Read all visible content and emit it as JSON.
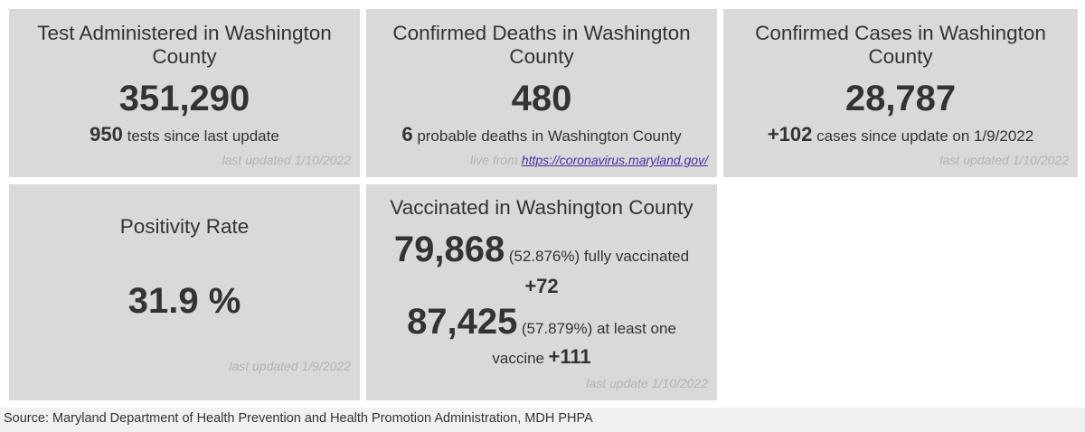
{
  "tests": {
    "title": "Test Administered in Washington County",
    "value": "351,290",
    "delta": "950",
    "delta_text": "tests since last update",
    "updated": "last updated 1/10/2022"
  },
  "deaths": {
    "title": "Confirmed Deaths in Washington County",
    "value": "480",
    "delta": "6",
    "delta_text": "probable deaths in Washington County",
    "source_prefix": "live from",
    "source_link": "https://coronavirus.maryland.gov/"
  },
  "cases": {
    "title": "Confirmed Cases in Washington County",
    "value": "28,787",
    "delta": "+102",
    "delta_text": "cases since update on 1/9/2022",
    "updated": "last updated 1/10/2022"
  },
  "positivity": {
    "title": "Positivity Rate",
    "value": "31.9 %",
    "updated": "last updated 1/9/2022"
  },
  "vaccinated": {
    "title": "Vaccinated in Washington County",
    "fully_value": "79,868",
    "fully_text": "(52.876%) fully vaccinated",
    "fully_delta": "+72",
    "one_value": "87,425",
    "one_text": "(57.879%) at least one",
    "one_text_2": "vaccine",
    "one_delta": "+111",
    "updated": "last update 1/10/2022"
  },
  "footer": {
    "source": "Source: Maryland Department of Health Prevention and Health Promotion Administration, MDH PHPA"
  },
  "colors": {
    "card_bg": "#d9d9d9",
    "text": "#333333",
    "muted": "#b4b4b4",
    "link": "#4b2ca3",
    "footer_bg": "#f1f1f1"
  }
}
